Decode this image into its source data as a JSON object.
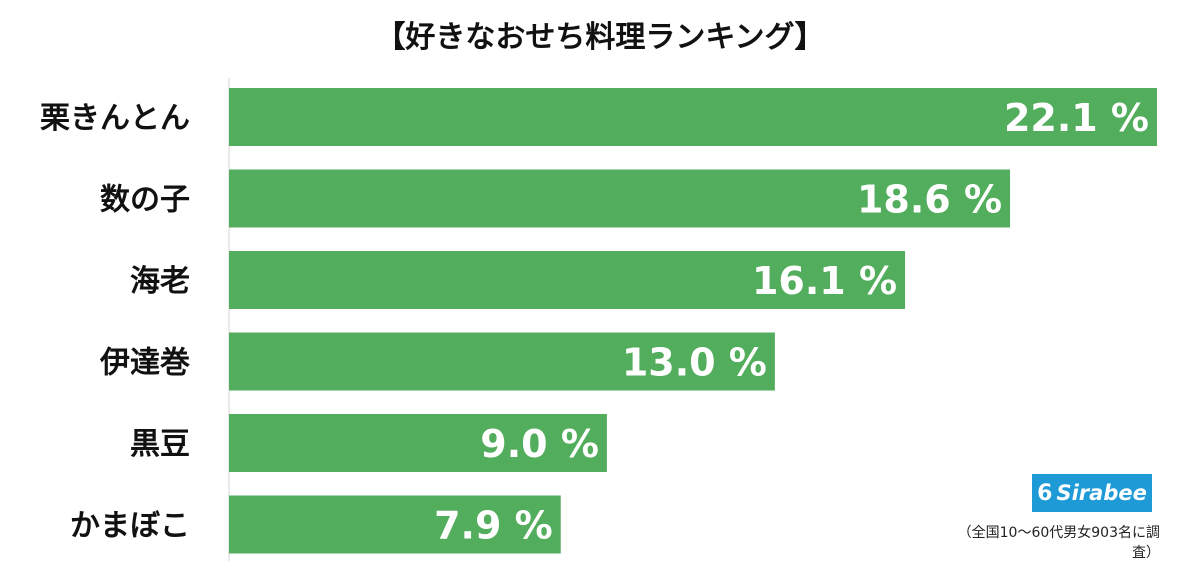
{
  "chart_data": {
    "type": "bar",
    "orientation": "horizontal",
    "title": "【好きなおせち料理ランキング】",
    "categories": [
      "栗きんとん",
      "数の子",
      "海老",
      "伊達巻",
      "黒豆",
      "かまぼこ"
    ],
    "values": [
      22.1,
      18.6,
      16.1,
      13.0,
      9.0,
      7.9
    ],
    "value_labels": [
      "22.1 %",
      "18.6 %",
      "16.1 %",
      "13.0 %",
      "9.0 %",
      "7.9 %"
    ],
    "xlim": [
      0,
      22.1
    ],
    "grid": false,
    "bar_color": "#52ad5c"
  },
  "logo": {
    "text": "Sirabee",
    "mark": "6"
  },
  "footnote": "（全国10〜60代男女903名に調査）"
}
